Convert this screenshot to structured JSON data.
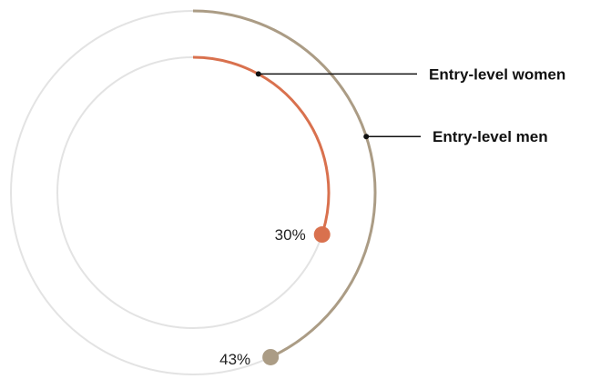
{
  "chart_data": {
    "type": "radial-progress",
    "title": "",
    "series": [
      {
        "name": "Entry-level women",
        "value": 30,
        "unit": "%",
        "label": "30%",
        "color": "#d9714e",
        "ring": "inner"
      },
      {
        "name": "Entry-level men",
        "value": 43,
        "unit": "%",
        "label": "43%",
        "color": "#ab9c85",
        "ring": "outer"
      }
    ],
    "max": 100,
    "track_color": "#e3e3e3",
    "grid": false,
    "legend": "right, with leader lines"
  }
}
